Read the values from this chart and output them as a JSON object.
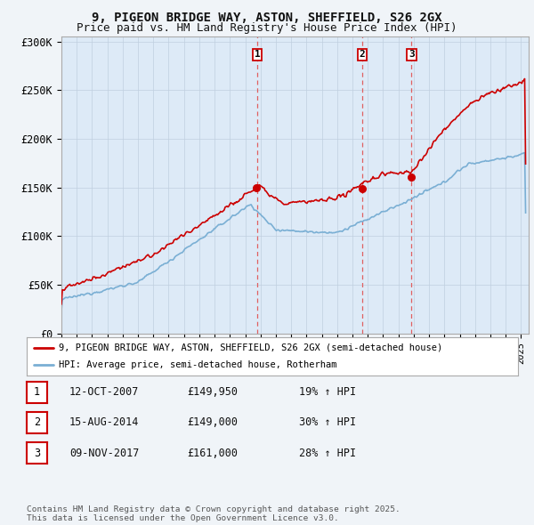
{
  "title": "9, PIGEON BRIDGE WAY, ASTON, SHEFFIELD, S26 2GX",
  "subtitle": "Price paid vs. HM Land Registry's House Price Index (HPI)",
  "ylabel_ticks": [
    "£0",
    "£50K",
    "£100K",
    "£150K",
    "£200K",
    "£250K",
    "£300K"
  ],
  "ytick_values": [
    0,
    50000,
    100000,
    150000,
    200000,
    250000,
    300000
  ],
  "ylim": [
    0,
    305000
  ],
  "xlim_start": 1995.0,
  "xlim_end": 2025.5,
  "red_line_color": "#cc0000",
  "blue_line_color": "#7aafd4",
  "vline_color": "#e06060",
  "sale_dates": [
    2007.78,
    2014.62,
    2017.86
  ],
  "sale_labels": [
    "1",
    "2",
    "3"
  ],
  "sale_prices": [
    149950,
    149000,
    161000
  ],
  "legend_label_red": "9, PIGEON BRIDGE WAY, ASTON, SHEFFIELD, S26 2GX (semi-detached house)",
  "legend_label_blue": "HPI: Average price, semi-detached house, Rotherham",
  "table_rows": [
    {
      "label": "1",
      "date": "12-OCT-2007",
      "price": "£149,950",
      "hpi": "19% ↑ HPI"
    },
    {
      "label": "2",
      "date": "15-AUG-2014",
      "price": "£149,000",
      "hpi": "30% ↑ HPI"
    },
    {
      "label": "3",
      "date": "09-NOV-2017",
      "price": "£161,000",
      "hpi": "28% ↑ HPI"
    }
  ],
  "footer": "Contains HM Land Registry data © Crown copyright and database right 2025.\nThis data is licensed under the Open Government Licence v3.0.",
  "background_color": "#f0f4f8",
  "plot_bg_color": "#ddeaf7",
  "title_fontsize": 10,
  "subtitle_fontsize": 9
}
